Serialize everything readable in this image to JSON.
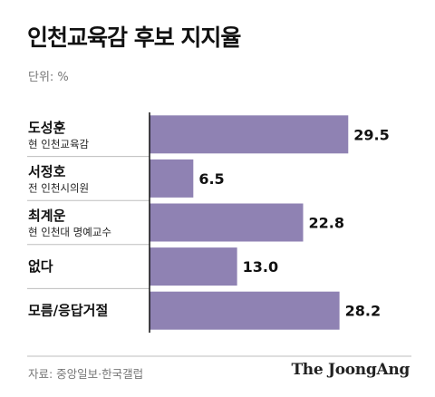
{
  "title": "인천교육감 후보 지지율",
  "unit_label": "단위: %",
  "source": "자료: 중앙일보·한국갤럽",
  "logo": "The JoongAng",
  "colors": {
    "bar": "#8f82b3",
    "divider": "#bdbdbd",
    "axis": "#111111"
  },
  "chart_data": {
    "type": "bar",
    "orientation": "horizontal",
    "categories": [
      "도성훈",
      "서정호",
      "최계운",
      "없다",
      "모름/응답거절"
    ],
    "subtitles": [
      "현 인천교육감",
      "전 인천시의원",
      "현 인천대 명예교수",
      "",
      ""
    ],
    "values": [
      29.5,
      6.5,
      22.8,
      13.0,
      28.2
    ],
    "value_labels": [
      "29.5",
      "6.5",
      "22.8",
      "13.0",
      "28.2"
    ],
    "title": "인천교육감 후보 지지율",
    "unit": "%",
    "xlim": [
      0,
      30
    ],
    "grid": false
  }
}
